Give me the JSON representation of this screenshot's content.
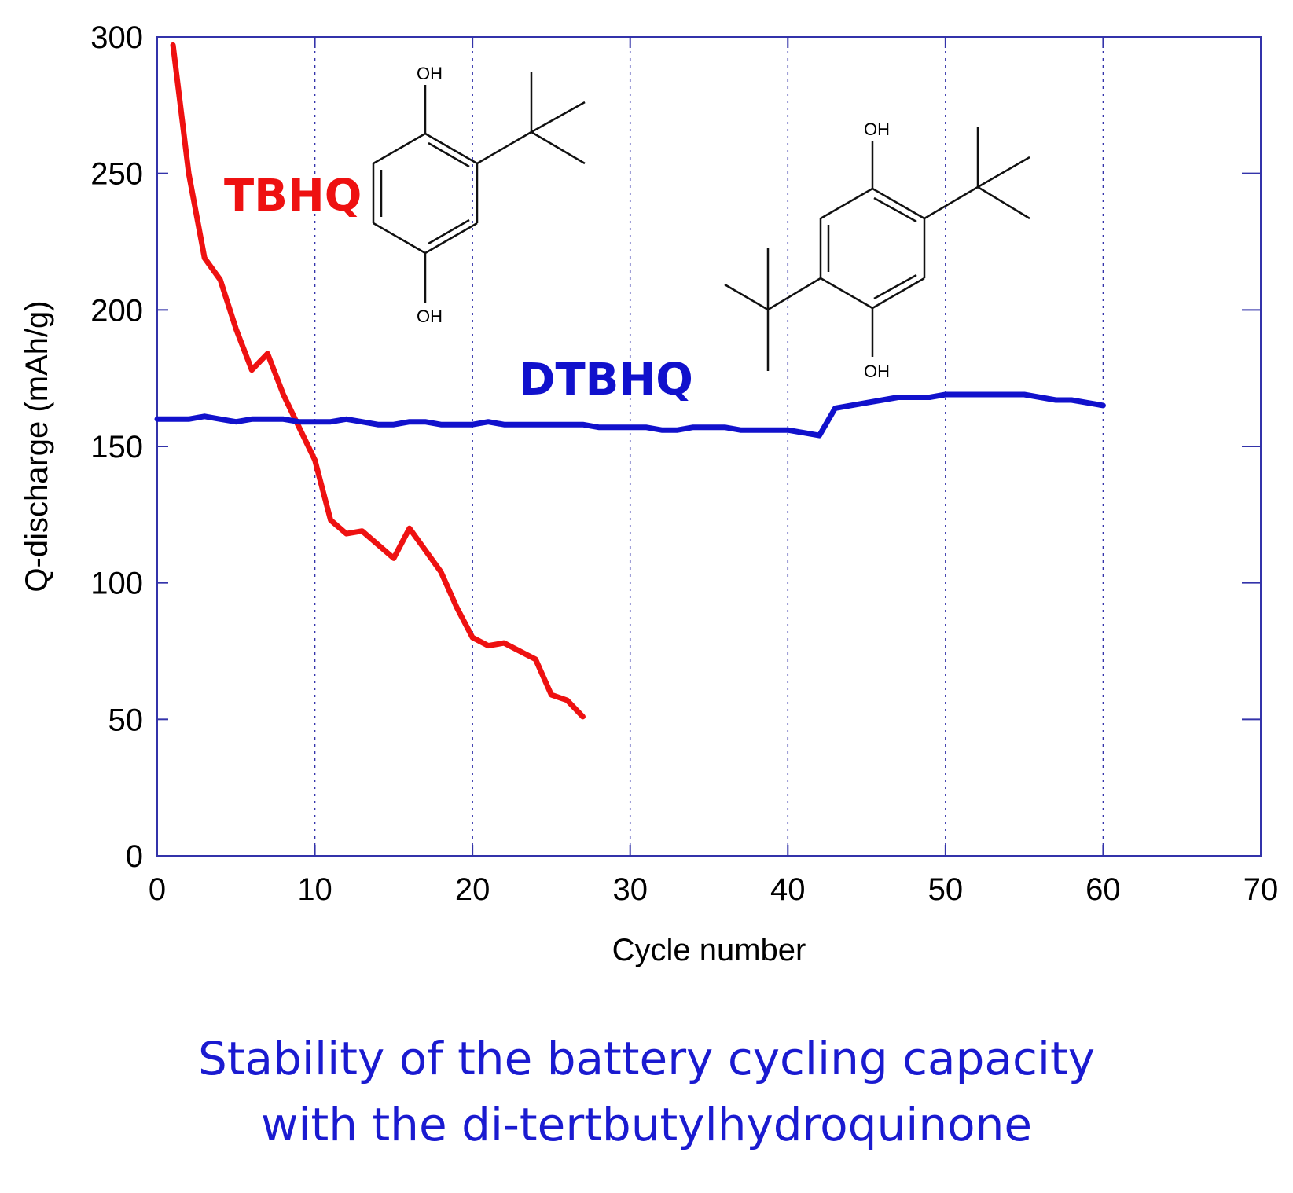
{
  "chart_data": {
    "type": "line",
    "xlabel": "Cycle number",
    "ylabel": "Q-discharge (mAh/g)",
    "xlim": [
      0,
      70
    ],
    "ylim": [
      0,
      300
    ],
    "xticks": [
      0,
      10,
      20,
      30,
      40,
      50,
      60,
      70
    ],
    "yticks": [
      0,
      50,
      100,
      150,
      200,
      250,
      300
    ],
    "grid": "vertical dotted at x = 10, 20, 30, 40, 50, 60",
    "series": [
      {
        "name": "TBHQ",
        "color": "#ee1111",
        "x": [
          1,
          2,
          3,
          4,
          5,
          6,
          7,
          8,
          9,
          10,
          11,
          12,
          13,
          14,
          15,
          16,
          17,
          18,
          19,
          20,
          21,
          22,
          23,
          24,
          25,
          26,
          27
        ],
        "y": [
          297,
          250,
          219,
          211,
          193,
          178,
          184,
          169,
          157,
          145,
          123,
          118,
          119,
          114,
          109,
          120,
          112,
          104,
          91,
          80,
          77,
          78,
          75,
          72,
          59,
          57,
          51
        ]
      },
      {
        "name": "DTBHQ",
        "color": "#1111cc",
        "x": [
          0,
          1,
          2,
          3,
          4,
          5,
          6,
          7,
          8,
          9,
          10,
          11,
          12,
          13,
          14,
          15,
          16,
          17,
          18,
          19,
          20,
          21,
          22,
          23,
          24,
          25,
          26,
          27,
          28,
          29,
          30,
          31,
          32,
          33,
          34,
          35,
          36,
          37,
          38,
          39,
          40,
          41,
          42,
          43,
          44,
          45,
          46,
          47,
          48,
          49,
          50,
          51,
          52,
          53,
          54,
          55,
          56,
          57,
          58,
          59,
          60
        ],
        "y": [
          160,
          160,
          160,
          161,
          160,
          159,
          160,
          160,
          160,
          159,
          159,
          159,
          160,
          159,
          158,
          158,
          159,
          159,
          158,
          158,
          158,
          159,
          158,
          158,
          158,
          158,
          158,
          158,
          157,
          157,
          157,
          157,
          156,
          156,
          157,
          157,
          157,
          156,
          156,
          156,
          156,
          155,
          154,
          164,
          165,
          166,
          167,
          168,
          168,
          168,
          169,
          169,
          169,
          169,
          169,
          169,
          168,
          167,
          167,
          166,
          165
        ]
      }
    ],
    "annotations": [
      {
        "text": "TBHQ",
        "color": "#ee1111"
      },
      {
        "text": "DTBHQ",
        "color": "#1111cc"
      },
      {
        "text": "OH"
      }
    ]
  },
  "caption": {
    "line1": "Stability of the battery cycling capacity",
    "line2": "with the di-tertbutylhydroquinone",
    "color": "#1a1ad0"
  }
}
